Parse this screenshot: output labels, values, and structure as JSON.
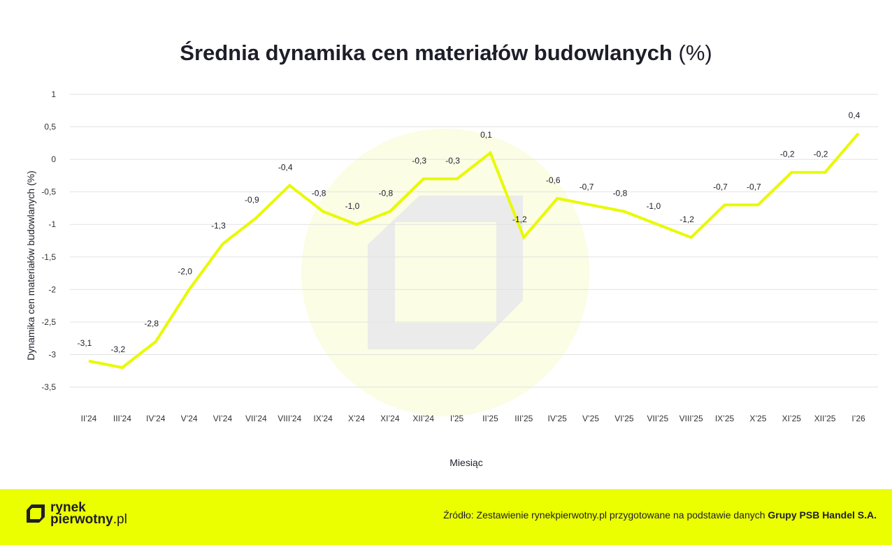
{
  "chart_data": {
    "type": "line",
    "title": "Średnia dynamika cen materiałów budowlanych",
    "title_unit": "(%)",
    "xlabel": "Miesiąc",
    "ylabel": "Dynamika cen materiałów budowlanych (%)",
    "ylim": [
      -3.5,
      1
    ],
    "yticks": [
      "1",
      "0,5",
      "0",
      "-0,5",
      "-1",
      "-1,5",
      "-2",
      "-2,5",
      "-3",
      "-3,5"
    ],
    "ytick_values": [
      1,
      0.5,
      0,
      -0.5,
      -1,
      -1.5,
      -2,
      -2.5,
      -3,
      -3.5
    ],
    "grid": true,
    "line_color": "#e8fa00",
    "categories": [
      "II’24",
      "III’24",
      "IV’24",
      "V’24",
      "VI’24",
      "VII’24",
      "VIII’24",
      "IX’24",
      "X’24",
      "XI’24",
      "XII’24",
      "I’25",
      "II’25",
      "III’25",
      "IV’25",
      "V’25",
      "VI’25",
      "VII’25",
      "VIII’25",
      "IX’25",
      "X’25",
      "XI’25",
      "XII’25",
      "I’26"
    ],
    "values": [
      -3.1,
      -3.2,
      -2.8,
      -2.0,
      -1.3,
      -0.9,
      -0.4,
      -0.8,
      -1.0,
      -0.8,
      -0.3,
      -0.3,
      0.1,
      -1.2,
      -0.6,
      -0.7,
      -0.8,
      -1.0,
      -1.2,
      -0.7,
      -0.7,
      -0.2,
      -0.2,
      0.4
    ],
    "data_labels": [
      "-3,1",
      "-3,2",
      "-2,8",
      "-2,0",
      "-1,3",
      "-0,9",
      "-0,4",
      "-0,8",
      "-1,0",
      "-0,8",
      "-0,3",
      "-0,3",
      "0,1",
      "-1,2",
      "-0,6",
      "-0,7",
      "-0,8",
      "-1,0",
      "-1,2",
      "-0,7",
      "-0,7",
      "-0,2",
      "-0,2",
      "0,4"
    ]
  },
  "footer": {
    "logo_line1": "rynek",
    "logo_line2": "pierwotny",
    "logo_suffix": ".pl",
    "source_prefix": "Źródło: Zestawienie rynekpierwotny.pl przygotowane na podstawie danych ",
    "source_bold": "Grupy PSB Handel S.A.",
    "background": "#ebff00"
  }
}
